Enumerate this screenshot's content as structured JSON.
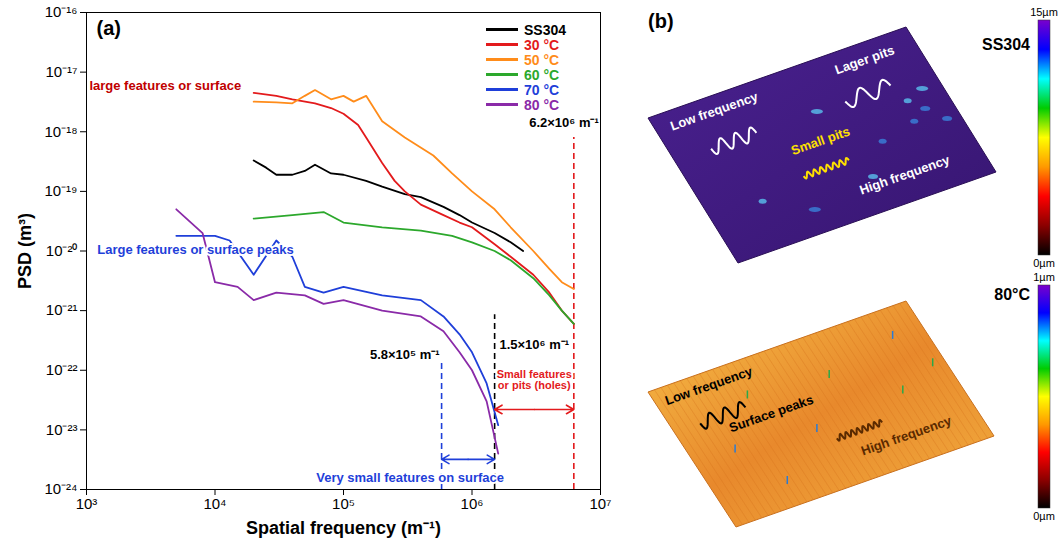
{
  "chart_data": {
    "type": "line",
    "title": "(a)",
    "x_label": "Spatial frequency (m⁻¹)",
    "y_label": "PSD (m³)",
    "log": true,
    "xlim": [
      1000,
      10000000
    ],
    "xticks": [
      {
        "value": 1000,
        "label": "10³"
      },
      {
        "value": 10000,
        "label": "10⁴"
      },
      {
        "value": 100000,
        "label": "10⁵"
      },
      {
        "value": 1000000,
        "label": "10⁶"
      },
      {
        "value": 10000000,
        "label": "10⁷"
      }
    ],
    "ylim": [
      1e-24,
      1e-16
    ],
    "yticks": [
      {
        "value": 1e-24,
        "label": "10⁻²⁴"
      },
      {
        "value": 1e-23,
        "label": "10⁻²³"
      },
      {
        "value": 1e-22,
        "label": "10⁻²²"
      },
      {
        "value": 1e-21,
        "label": "10⁻²¹"
      },
      {
        "value": 1e-20,
        "label": "10⁻²⁰"
      },
      {
        "value": 1e-19,
        "label": "10⁻¹⁹"
      },
      {
        "value": 1e-18,
        "label": "10⁻¹⁸"
      },
      {
        "value": 1e-17,
        "label": "10⁻¹⁷"
      },
      {
        "value": 1e-16,
        "label": "10⁻¹⁶"
      }
    ],
    "legend": "top-right",
    "series": [
      {
        "name": "SS304",
        "color": "#000000",
        "x": [
          20000,
          25000,
          30000,
          40000,
          50000,
          60000,
          80000,
          100000,
          150000,
          200000,
          300000,
          400000,
          600000,
          800000,
          1000000,
          1500000,
          2000000,
          2500000
        ],
        "values": [
          3.3e-19,
          2.5e-19,
          1.9e-19,
          1.9e-19,
          2.2e-19,
          2.8e-19,
          2e-19,
          1.9e-19,
          1.5e-19,
          1.2e-19,
          9e-20,
          8e-20,
          5.5e-20,
          4e-20,
          3e-20,
          2e-20,
          1.4e-20,
          1e-20
        ]
      },
      {
        "name": "30 °C",
        "color": "#e31a1c",
        "x": [
          20000,
          30000,
          40000,
          60000,
          80000,
          100000,
          130000,
          150000,
          200000,
          250000,
          300000,
          400000,
          600000,
          800000,
          1000000,
          1500000,
          2000000,
          3000000,
          4000000,
          5000000,
          6200000
        ],
        "values": [
          4.5e-18,
          4e-18,
          3.5e-18,
          3e-18,
          2.5e-18,
          2e-18,
          1.3e-18,
          8e-19,
          3e-19,
          1.5e-19,
          1e-19,
          6e-20,
          4e-20,
          3e-20,
          2.5e-20,
          1.3e-20,
          8e-21,
          4e-21,
          2e-21,
          1e-21,
          6e-22
        ]
      },
      {
        "name": "50 °C",
        "color": "#ff8c1a",
        "x": [
          20000,
          30000,
          40000,
          50000,
          60000,
          80000,
          100000,
          120000,
          150000,
          200000,
          300000,
          500000,
          700000,
          1000000,
          1500000,
          2000000,
          3000000,
          4000000,
          5000000,
          6200000
        ],
        "values": [
          3.2e-18,
          3.1e-18,
          3e-18,
          4e-18,
          5e-18,
          3.5e-18,
          4e-18,
          3.2e-18,
          4e-18,
          1.5e-18,
          8e-19,
          4e-19,
          2e-19,
          1e-19,
          5e-20,
          2.5e-20,
          1e-20,
          5e-21,
          3e-21,
          2.3e-21
        ]
      },
      {
        "name": "60 °C",
        "color": "#2ca82c",
        "x": [
          20000,
          40000,
          70000,
          100000,
          200000,
          400000,
          700000,
          1000000,
          1500000,
          2000000,
          3000000,
          4000000,
          5000000,
          6200000
        ],
        "values": [
          3.5e-20,
          4e-20,
          4.5e-20,
          3e-20,
          2.5e-20,
          2.2e-20,
          1.8e-20,
          1.4e-20,
          1e-20,
          7e-21,
          3.5e-21,
          1.8e-21,
          1e-21,
          6e-22
        ]
      },
      {
        "name": "70 °C",
        "color": "#1f3fd9",
        "x": [
          5000,
          10000,
          13000,
          20000,
          30000,
          40000,
          50000,
          70000,
          100000,
          200000,
          400000,
          600000,
          800000,
          1000000,
          1300000,
          1600000
        ],
        "values": [
          1.8e-20,
          1.8e-20,
          1.5e-20,
          4e-21,
          1.5e-20,
          8e-21,
          2.5e-21,
          2e-21,
          2.5e-21,
          1.8e-21,
          1.5e-21,
          8e-22,
          4e-22,
          2e-22,
          6e-23,
          1.2e-23
        ]
      },
      {
        "name": "80 °C",
        "color": "#8a2aa8",
        "x": [
          5000,
          8000,
          10000,
          15000,
          20000,
          30000,
          50000,
          70000,
          100000,
          200000,
          400000,
          600000,
          800000,
          1000000,
          1300000,
          1600000
        ],
        "values": [
          5e-20,
          2e-20,
          3e-21,
          2.5e-21,
          1.5e-21,
          2e-21,
          1.8e-21,
          1.3e-21,
          1.5e-21,
          1e-21,
          8e-22,
          4.5e-22,
          2e-22,
          1e-22,
          3e-23,
          4e-24
        ]
      }
    ],
    "annotations": [
      {
        "text": "large features or surface",
        "x": 4100,
        "y": 6e-18,
        "color": "#c00000"
      },
      {
        "text": "Large features or surface peaks",
        "x": 7050,
        "y": 1.05e-20,
        "color": "#1f3fd9"
      },
      {
        "text": "6.2×10⁶ m⁻¹",
        "x": 5200000,
        "y": 1.4e-18,
        "color": "#000000"
      },
      {
        "text": "1.5×10⁶ m⁻¹",
        "x": 3050000,
        "y": 2.7e-22,
        "color": "#000000"
      },
      {
        "text": "5.8×10⁵ m⁻¹",
        "x": 300000,
        "y": 1.8e-22,
        "color": "#000000"
      },
      {
        "text": "Small features\nor pits (holes)",
        "x": 3050000,
        "y": 7e-23,
        "color": "#e31a1c"
      },
      {
        "text": "Very small features on surface",
        "x": 330000,
        "y": 1.6e-24,
        "color": "#1f3fd9"
      }
    ],
    "vlines": [
      {
        "x": 6200000,
        "y_top": 8e-19,
        "color": "#e31a1c",
        "line_style": "dashed"
      },
      {
        "x": 1500000,
        "y_top": 8.5e-22,
        "color": "#000000",
        "line_style": "dashed"
      },
      {
        "x": 580000,
        "y_top": 1.5e-22,
        "color": "#1f3fd9",
        "line_style": "dashed"
      }
    ],
    "arrows": [
      {
        "x1": 1500000,
        "x2": 6200000,
        "y": 2.2e-23,
        "color": "#e31a1c"
      },
      {
        "x1": 580000,
        "x2": 1500000,
        "y": 3.2e-24,
        "color": "#1f3fd9"
      }
    ]
  },
  "panel_b": {
    "label": "(b)",
    "surfaces": [
      {
        "name": "SS304",
        "colorbar": {
          "range": [
            0,
            15
          ],
          "ticks": [
            {
              "value": 15,
              "label": "15µm"
            },
            {
              "value": 0,
              "label": "0µm"
            }
          ]
        },
        "annotations": [
          {
            "text": "Low frequency",
            "color": "#ffffff"
          },
          {
            "text": "Lager pits",
            "color": "#ffffff"
          },
          {
            "text": "Small pits",
            "color": "#ffe000"
          },
          {
            "text": "High frequency",
            "color": "#ffffff"
          }
        ]
      },
      {
        "name": "80°C",
        "colorbar": {
          "range": [
            0,
            1
          ],
          "ticks": [
            {
              "value": 1,
              "label": "1µm"
            },
            {
              "value": 0,
              "label": "0µm"
            }
          ]
        },
        "annotations": [
          {
            "text": "Low frequency",
            "color": "#000000"
          },
          {
            "text": "Surface peaks",
            "color": "#000000"
          },
          {
            "text": "High frequency",
            "color": "#5a2a00"
          }
        ]
      }
    ]
  }
}
